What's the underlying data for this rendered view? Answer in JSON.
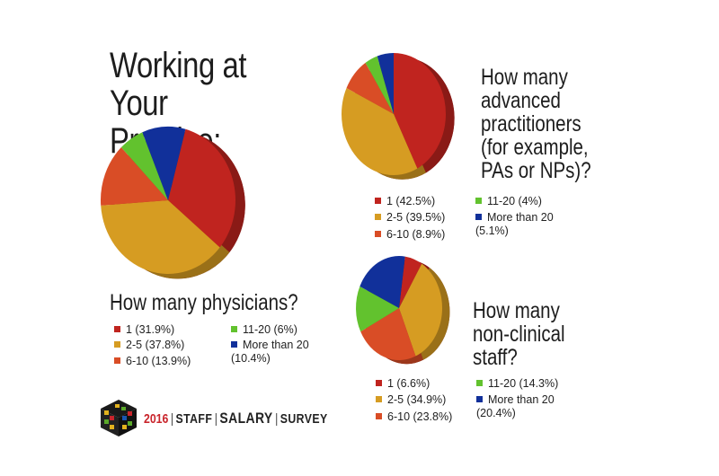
{
  "title_lines": [
    "Working at",
    "Your Practice:"
  ],
  "footer": {
    "year": "2016",
    "words": [
      "STAFF",
      "SALARY",
      "SURVEY"
    ]
  },
  "colors": {
    "slice_1": "#c0241f",
    "slice_2": "#d69c22",
    "slice_3": "#d94d26",
    "slice_4": "#62c22e",
    "slice_5": "#11309a",
    "footer_year": "#c9252c"
  },
  "chart_data": [
    {
      "type": "pie",
      "title": "How many physicians?",
      "categories": [
        "1",
        "2-5",
        "6-10",
        "11-20",
        "More than 20"
      ],
      "values": [
        31.9,
        37.8,
        13.9,
        6,
        10.4
      ],
      "legend_labels": [
        "1 (31.9%)",
        "2-5 (37.8%)",
        "6-10 (13.9%)",
        "11-20 (6%)",
        "More than 20 (10.4%)"
      ]
    },
    {
      "type": "pie",
      "title": "How many advanced practitioners (for example, PAs or NPs)?",
      "categories": [
        "1",
        "2-5",
        "6-10",
        "11-20",
        "More than 20"
      ],
      "values": [
        42.5,
        39.5,
        8.9,
        4,
        5.1
      ],
      "legend_labels": [
        "1 (42.5%)",
        "2-5 (39.5%)",
        "6-10 (8.9%)",
        "11-20 (4%)",
        "More than 20 (5.1%)"
      ]
    },
    {
      "type": "pie",
      "title": "How many non-clinical staff?",
      "categories": [
        "1",
        "2-5",
        "6-10",
        "11-20",
        "More than 20"
      ],
      "values": [
        6.6,
        34.9,
        23.8,
        14.3,
        20.4
      ],
      "legend_labels": [
        "1 (6.6%)",
        "2-5 (34.9%)",
        "6-10 (23.8%)",
        "11-20 (14.3%)",
        "More than 20 (20.4%)"
      ]
    }
  ],
  "questions": {
    "q1": "How many physicians?",
    "q2_lines": [
      "How many",
      "advanced",
      "practitioners",
      "(for example,",
      "PAs or NPs)?"
    ],
    "q3_lines": [
      "How many",
      "non-clinical",
      "staff?"
    ]
  }
}
